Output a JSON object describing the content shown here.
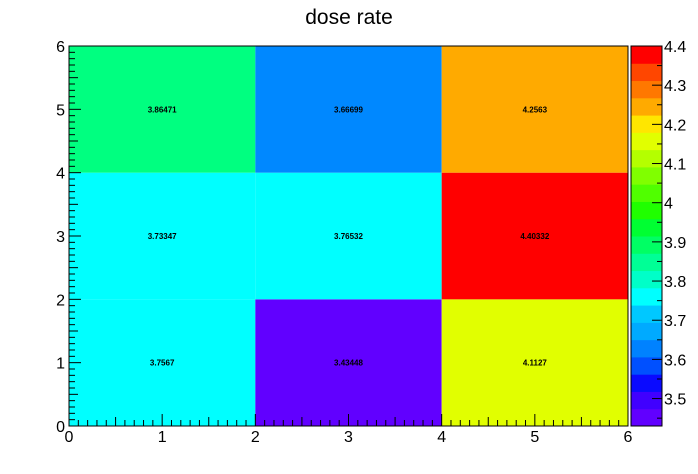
{
  "chart_data": {
    "type": "heatmap",
    "title": "dose rate",
    "xlabel": "",
    "ylabel": "",
    "x_edges": [
      0,
      2,
      4,
      6
    ],
    "y_edges": [
      0,
      2,
      4,
      6
    ],
    "xlim": [
      0,
      6
    ],
    "ylim": [
      0,
      6
    ],
    "x_tick_labels": [
      "0",
      "1",
      "2",
      "3",
      "4",
      "5",
      "6"
    ],
    "y_tick_labels": [
      "0",
      "1",
      "2",
      "3",
      "4",
      "5",
      "6"
    ],
    "cells": [
      {
        "x": [
          0,
          2
        ],
        "y": [
          0,
          2
        ],
        "value": 3.7567,
        "label": "3.7567"
      },
      {
        "x": [
          2,
          4
        ],
        "y": [
          0,
          2
        ],
        "value": 3.43448,
        "label": "3.43448"
      },
      {
        "x": [
          4,
          6
        ],
        "y": [
          0,
          2
        ],
        "value": 4.1127,
        "label": "4.1127"
      },
      {
        "x": [
          0,
          2
        ],
        "y": [
          2,
          4
        ],
        "value": 3.73347,
        "label": "3.73347"
      },
      {
        "x": [
          2,
          4
        ],
        "y": [
          2,
          4
        ],
        "value": 3.76532,
        "label": "3.76532"
      },
      {
        "x": [
          4,
          6
        ],
        "y": [
          2,
          4
        ],
        "value": 4.40332,
        "label": "4.40332"
      },
      {
        "x": [
          0,
          2
        ],
        "y": [
          4,
          6
        ],
        "value": 3.86471,
        "label": "3.86471"
      },
      {
        "x": [
          2,
          4
        ],
        "y": [
          4,
          6
        ],
        "value": 3.66699,
        "label": "3.66699"
      },
      {
        "x": [
          4,
          6
        ],
        "y": [
          4,
          6
        ],
        "value": 4.2563,
        "label": "4.2563"
      }
    ],
    "colorbar": {
      "range": [
        3.43,
        4.4
      ],
      "tick_values": [
        3.5,
        3.6,
        3.7,
        3.8,
        3.9,
        4.0,
        4.1,
        4.2,
        4.3,
        4.4
      ],
      "tick_labels": [
        "3.5",
        "3.6",
        "3.7",
        "3.8",
        "3.9",
        "4",
        "4.1",
        "4.2",
        "4.3",
        "4.4"
      ],
      "colors": [
        "#6100ff",
        "#4000ff",
        "#0a0aff",
        "#0050ff",
        "#0082ff",
        "#00aaff",
        "#00c8ff",
        "#00ffff",
        "#00ffc8",
        "#00ff96",
        "#00ff64",
        "#00ff32",
        "#20ff00",
        "#50ff00",
        "#80ff00",
        "#b4ff00",
        "#e1ff00",
        "#ffe600",
        "#ffaa00",
        "#ff7800",
        "#ff4600",
        "#ff0000"
      ]
    },
    "cell_colors": {
      "3.7567": "#00ffff",
      "3.43448": "#6100ff",
      "4.1127": "#e1ff00",
      "3.73347": "#00ffff",
      "3.76532": "#00ffff",
      "4.40332": "#ff0000",
      "3.86471": "#00ff80",
      "3.66699": "#0088ff",
      "4.2563": "#ffaa00"
    },
    "grid": false,
    "legend": "colorbar-right"
  }
}
